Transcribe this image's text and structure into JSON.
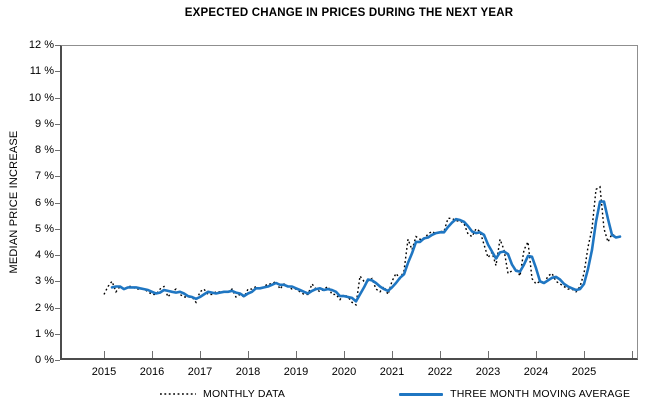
{
  "chart_data": {
    "type": "line",
    "title": "EXPECTED CHANGE IN PRICES DURING THE NEXT YEAR",
    "ylabel": "MEDIAN PRICE INCREASE",
    "xlabel": "",
    "ylim": [
      0,
      12
    ],
    "y_tick_labels": [
      "12 %",
      "11 %",
      "10 %",
      "9 %",
      "8 %",
      "7 %",
      "6 %",
      "5 %",
      "4 %",
      "3 %",
      "2 %",
      "1 %",
      "0 %"
    ],
    "x_tick_labels": [
      "2015",
      "2016",
      "2017",
      "2018",
      "2019",
      "2020",
      "2021",
      "2022",
      "2023",
      "2024",
      "2025"
    ],
    "x_range": {
      "start": "2015-01",
      "end": "2025-10",
      "step": "month"
    },
    "grid": false,
    "legend_position": "bottom",
    "colors": {
      "monthly": "#000000",
      "moving_average": "#1f76c2"
    },
    "series": [
      {
        "name": "MONTHLY DATA",
        "style": "dotted",
        "color": "#000000",
        "values": [
          2.5,
          2.8,
          3.0,
          2.6,
          2.8,
          2.7,
          2.8,
          2.8,
          2.7,
          2.7,
          2.7,
          2.6,
          2.5,
          2.5,
          2.7,
          2.8,
          2.4,
          2.6,
          2.7,
          2.5,
          2.4,
          2.4,
          2.4,
          2.2,
          2.6,
          2.7,
          2.5,
          2.5,
          2.6,
          2.6,
          2.6,
          2.6,
          2.7,
          2.4,
          2.5,
          2.4,
          2.7,
          2.7,
          2.8,
          2.7,
          2.8,
          2.9,
          2.9,
          3.0,
          2.7,
          2.9,
          2.8,
          2.7,
          2.7,
          2.6,
          2.5,
          2.5,
          2.9,
          2.7,
          2.6,
          2.7,
          2.8,
          2.5,
          2.5,
          2.3,
          2.5,
          2.4,
          2.2,
          2.1,
          3.2,
          3.0,
          3.0,
          3.1,
          2.7,
          2.6,
          2.8,
          2.5,
          3.0,
          3.3,
          3.1,
          3.4,
          4.6,
          4.2,
          4.7,
          4.6,
          4.6,
          4.8,
          4.9,
          4.8,
          4.9,
          4.9,
          5.4,
          5.4,
          5.3,
          5.3,
          5.2,
          4.8,
          4.7,
          5.0,
          4.9,
          4.4,
          3.9,
          4.1,
          3.6,
          4.6,
          4.2,
          3.3,
          3.4,
          3.5,
          3.2,
          4.2,
          4.5,
          3.1,
          2.9,
          3.0,
          2.9,
          3.2,
          3.3,
          3.0,
          2.9,
          2.8,
          2.7,
          2.7,
          2.6,
          2.8,
          3.3,
          4.3,
          5.0,
          6.5,
          6.6,
          5.0,
          4.5,
          4.8,
          4.7,
          4.6
        ]
      },
      {
        "name": "THREE MONTH MOVING AVERAGE",
        "style": "solid",
        "color": "#1f76c2",
        "derived_from": "3-month trailing moving average of MONTHLY DATA"
      }
    ]
  }
}
